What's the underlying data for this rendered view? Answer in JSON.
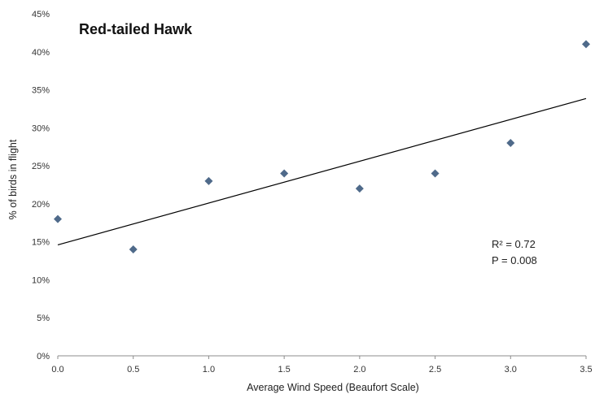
{
  "chart_data": {
    "type": "scatter",
    "title": "Red-tailed Hawk",
    "xlabel": "Average Wind Speed (Beaufort Scale)",
    "ylabel": "% of birds in flight",
    "xlim": [
      0,
      3.5
    ],
    "ylim": [
      0,
      45
    ],
    "x_ticks": [
      "0.0",
      "0.5",
      "1.0",
      "1.5",
      "2.0",
      "2.5",
      "3.0",
      "3.5"
    ],
    "y_ticks": [
      "0%",
      "5%",
      "10%",
      "15%",
      "20%",
      "25%",
      "30%",
      "35%",
      "40%",
      "45%"
    ],
    "grid": false,
    "marker": "diamond",
    "series": [
      {
        "points": [
          {
            "x": 0.0,
            "y": 18
          },
          {
            "x": 0.5,
            "y": 14
          },
          {
            "x": 1.0,
            "y": 23
          },
          {
            "x": 1.5,
            "y": 24
          },
          {
            "x": 2.0,
            "y": 22
          },
          {
            "x": 2.5,
            "y": 24
          },
          {
            "x": 3.0,
            "y": 28
          },
          {
            "x": 3.5,
            "y": 41
          }
        ],
        "color": "#4F6A8A"
      }
    ],
    "trendline": {
      "type": "linear",
      "intercept": 14.6,
      "slope": 5.5,
      "color": "#000000"
    },
    "annotations": [
      "R² = 0.72",
      "P = 0.008"
    ]
  }
}
